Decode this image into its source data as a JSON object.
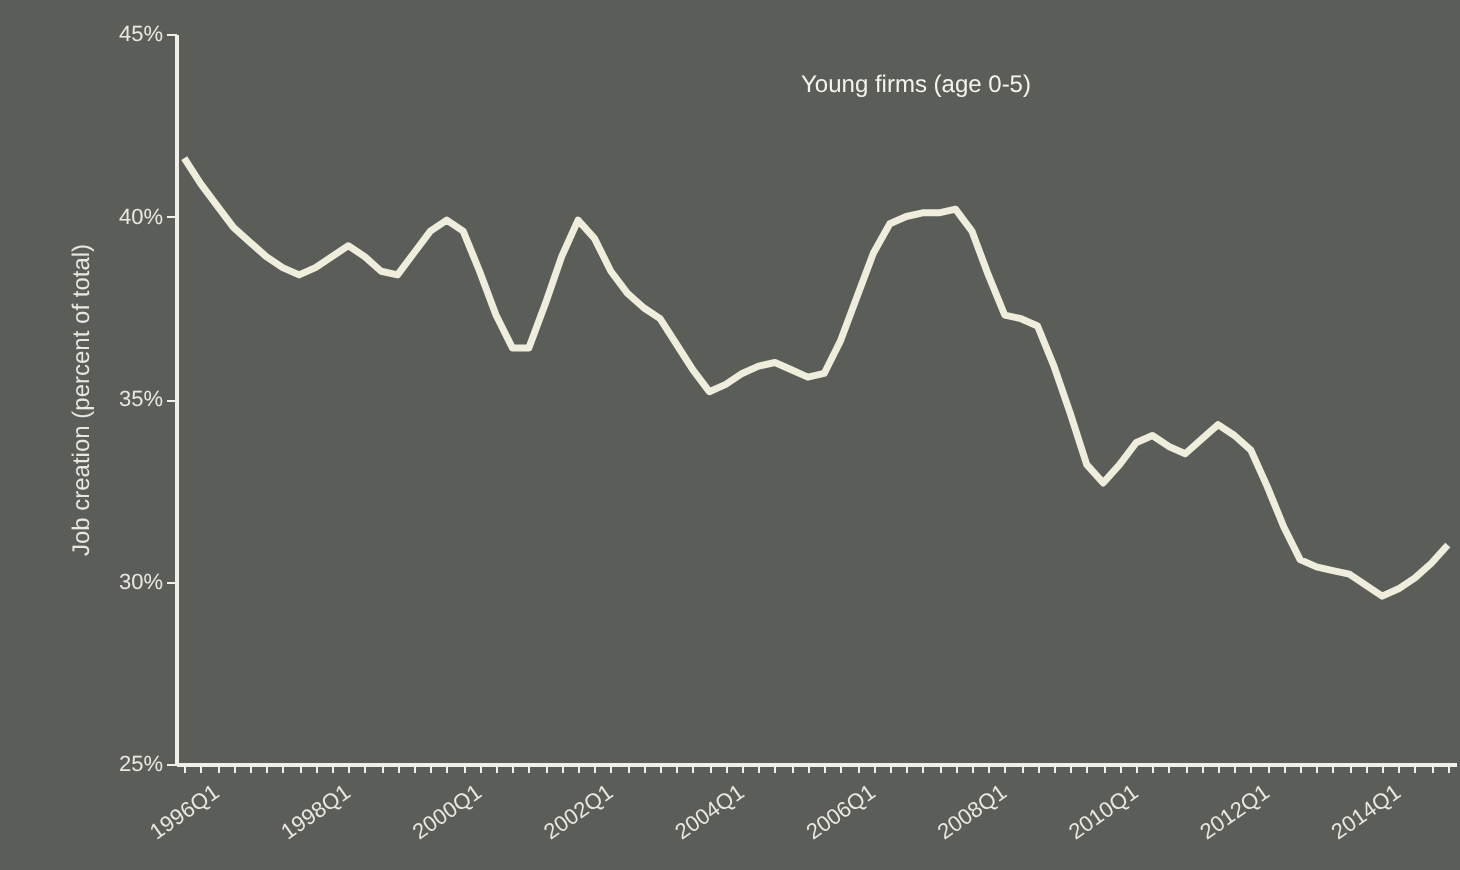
{
  "chart_data": {
    "type": "line",
    "ylabel": "Job creation (percent of total)",
    "annotations": [
      "Young firms (age 0-5)"
    ],
    "categories": [
      "1996Q1",
      null,
      null,
      null,
      null,
      null,
      null,
      null,
      "1998Q1",
      null,
      null,
      null,
      null,
      null,
      null,
      null,
      "2000Q1",
      null,
      null,
      null,
      null,
      null,
      null,
      null,
      "2002Q1",
      null,
      null,
      null,
      null,
      null,
      null,
      null,
      "2004Q1",
      null,
      null,
      null,
      null,
      null,
      null,
      null,
      "2006Q1",
      null,
      null,
      null,
      null,
      null,
      null,
      null,
      "2008Q1",
      null,
      null,
      null,
      null,
      null,
      null,
      null,
      "2010Q1",
      null,
      null,
      null,
      null,
      null,
      null,
      null,
      "2012Q1",
      null,
      null,
      null,
      null,
      null,
      null,
      null,
      "2014Q1",
      null,
      null,
      null,
      null,
      null
    ],
    "series": [
      {
        "color": "#efeedd",
        "values": [
          41.6,
          40.9,
          40.3,
          39.7,
          39.3,
          38.9,
          38.6,
          38.4,
          38.6,
          38.9,
          39.2,
          38.9,
          38.5,
          38.4,
          39.0,
          39.6,
          39.9,
          39.6,
          38.5,
          37.3,
          36.4,
          36.4,
          37.6,
          38.9,
          39.9,
          39.4,
          38.5,
          37.9,
          37.5,
          37.2,
          36.5,
          35.8,
          35.2,
          35.4,
          35.7,
          35.9,
          36.0,
          35.8,
          35.6,
          35.7,
          36.6,
          37.8,
          39.0,
          39.8,
          40.0,
          40.1,
          40.1,
          40.2,
          39.6,
          38.4,
          37.3,
          37.2,
          37.0,
          35.9,
          34.6,
          33.2,
          32.7,
          33.2,
          33.8,
          34.0,
          33.7,
          33.5,
          33.9,
          34.3,
          34.0,
          33.6,
          32.6,
          31.5,
          30.6,
          30.4,
          30.3,
          30.2,
          29.9,
          29.6,
          29.8,
          30.1,
          30.5,
          31.0
        ]
      }
    ],
    "ylim": [
      25,
      45
    ],
    "yticks": [
      {
        "value": 25,
        "label": "25%"
      },
      {
        "value": 30,
        "label": "30%"
      },
      {
        "value": 35,
        "label": "35%"
      },
      {
        "value": 40,
        "label": "40%"
      },
      {
        "value": 45,
        "label": "45%"
      }
    ],
    "grid": false,
    "marker": "none",
    "line_style": "solid"
  }
}
